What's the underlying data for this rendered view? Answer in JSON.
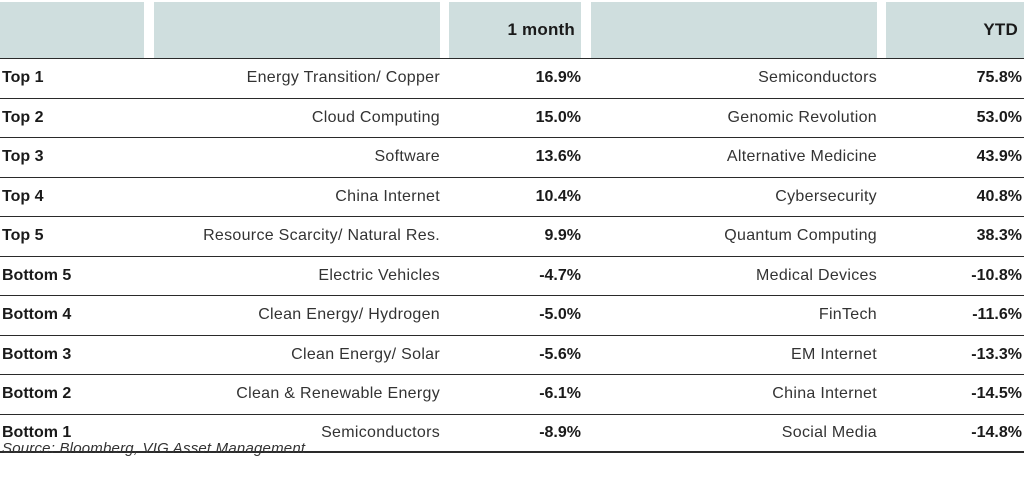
{
  "table": {
    "headers": [
      "",
      "",
      "1 month",
      "",
      "YTD"
    ],
    "rows": [
      {
        "rank": "Top 1",
        "m_theme": "Energy Transition/ Copper",
        "m_value": "16.9%",
        "y_theme": "Semiconductors",
        "y_value": "75.8%"
      },
      {
        "rank": "Top 2",
        "m_theme": "Cloud Computing",
        "m_value": "15.0%",
        "y_theme": "Genomic Revolution",
        "y_value": "53.0%"
      },
      {
        "rank": "Top 3",
        "m_theme": "Software",
        "m_value": "13.6%",
        "y_theme": "Alternative Medicine",
        "y_value": "43.9%"
      },
      {
        "rank": "Top 4",
        "m_theme": "China Internet",
        "m_value": "10.4%",
        "y_theme": "Cybersecurity",
        "y_value": "40.8%"
      },
      {
        "rank": "Top 5",
        "m_theme": "Resource Scarcity/ Natural Res.",
        "m_value": "9.9%",
        "y_theme": "Quantum Computing",
        "y_value": "38.3%"
      },
      {
        "rank": "Bottom 5",
        "m_theme": "Electric Vehicles",
        "m_value": "-4.7%",
        "y_theme": "Medical Devices",
        "y_value": "-10.8%"
      },
      {
        "rank": "Bottom 4",
        "m_theme": "Clean Energy/ Hydrogen",
        "m_value": "-5.0%",
        "y_theme": "FinTech",
        "y_value": "-11.6%"
      },
      {
        "rank": "Bottom 3",
        "m_theme": "Clean Energy/ Solar",
        "m_value": "-5.6%",
        "y_theme": "EM Internet",
        "y_value": "-13.3%"
      },
      {
        "rank": "Bottom 2",
        "m_theme": "Clean & Renewable Energy",
        "m_value": "-6.1%",
        "y_theme": "China Internet",
        "y_value": "-14.5%"
      },
      {
        "rank": "Bottom 1",
        "m_theme": "Semiconductors",
        "m_value": "-8.9%",
        "y_theme": "Social Media",
        "y_value": "-14.8%"
      }
    ]
  },
  "source": "Source: Bloomberg, VIG Asset Management",
  "colors": {
    "header_bg": "#cfdede",
    "rule": "#2a2a2a"
  }
}
